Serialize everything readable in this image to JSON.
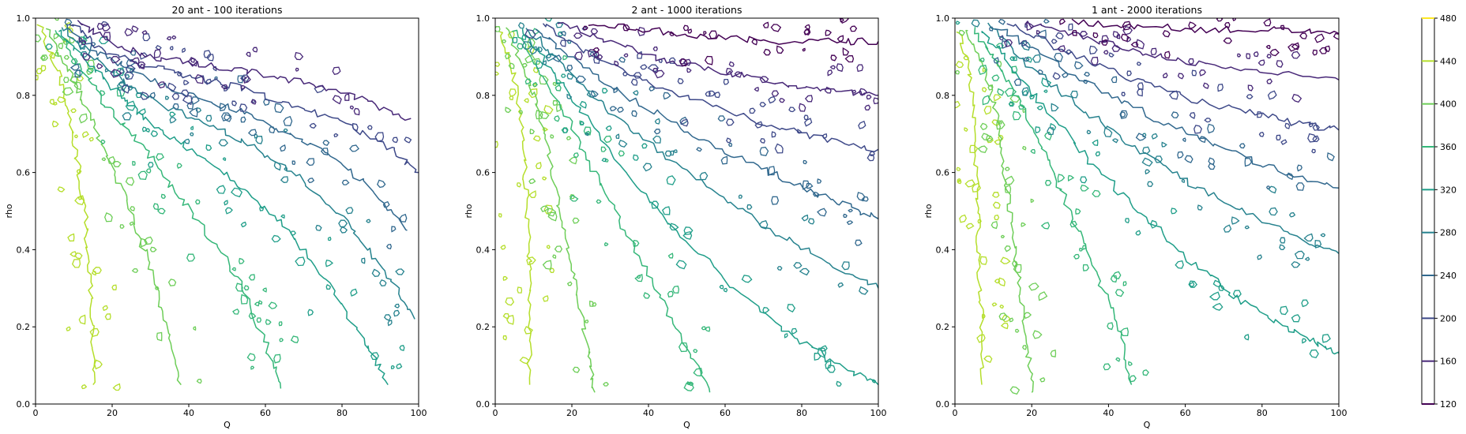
{
  "chart_data": {
    "type": "contour",
    "levels": [
      120,
      160,
      200,
      240,
      280,
      320,
      360,
      400,
      440,
      480
    ],
    "level_colors": [
      "#440154",
      "#482878",
      "#3e4989",
      "#31688e",
      "#26828e",
      "#1f9e89",
      "#35b779",
      "#6ece58",
      "#b5de2b",
      "#fde725"
    ],
    "panels": [
      {
        "title": "20 ant - 100 iterations",
        "xlabel": "Q",
        "ylabel": "rho",
        "xlim": [
          0,
          100
        ],
        "ylim": [
          0,
          1
        ],
        "xticks": [
          "0",
          "20",
          "40",
          "60",
          "80",
          "100"
        ],
        "yticks": [
          "0.0",
          "0.2",
          "0.4",
          "0.6",
          "0.8",
          "1.0"
        ],
        "level_boundaries": [
          {
            "level": 440,
            "pts": [
              [
                1,
                0.98
              ],
              [
                6,
                0.86
              ],
              [
                9,
                0.74
              ],
              [
                11,
                0.62
              ],
              [
                13,
                0.48
              ],
              [
                14,
                0.34
              ],
              [
                15,
                0.2
              ],
              [
                15,
                0.05
              ]
            ]
          },
          {
            "level": 400,
            "pts": [
              [
                3,
                0.97
              ],
              [
                9,
                0.86
              ],
              [
                14,
                0.75
              ],
              [
                19,
                0.64
              ],
              [
                24,
                0.52
              ],
              [
                29,
                0.38
              ],
              [
                34,
                0.22
              ],
              [
                38,
                0.05
              ]
            ]
          },
          {
            "level": 360,
            "pts": [
              [
                5,
                0.97
              ],
              [
                12,
                0.87
              ],
              [
                18,
                0.78
              ],
              [
                25,
                0.7
              ],
              [
                33,
                0.6
              ],
              [
                42,
                0.48
              ],
              [
                52,
                0.34
              ],
              [
                60,
                0.16
              ],
              [
                64,
                0.04
              ]
            ]
          },
          {
            "level": 320,
            "pts": [
              [
                6,
                0.97
              ],
              [
                14,
                0.88
              ],
              [
                22,
                0.8
              ],
              [
                30,
                0.73
              ],
              [
                40,
                0.66
              ],
              [
                52,
                0.58
              ],
              [
                64,
                0.47
              ],
              [
                76,
                0.32
              ],
              [
                86,
                0.16
              ],
              [
                92,
                0.05
              ]
            ]
          },
          {
            "level": 280,
            "pts": [
              [
                7,
                0.98
              ],
              [
                15,
                0.9
              ],
              [
                24,
                0.83
              ],
              [
                34,
                0.77
              ],
              [
                46,
                0.72
              ],
              [
                58,
                0.66
              ],
              [
                70,
                0.58
              ],
              [
                82,
                0.46
              ],
              [
                92,
                0.33
              ],
              [
                99,
                0.22
              ]
            ]
          },
          {
            "level": 240,
            "pts": [
              [
                8,
                0.98
              ],
              [
                16,
                0.91
              ],
              [
                26,
                0.86
              ],
              [
                37,
                0.81
              ],
              [
                50,
                0.77
              ],
              [
                62,
                0.72
              ],
              [
                74,
                0.66
              ],
              [
                86,
                0.57
              ],
              [
                97,
                0.45
              ]
            ]
          },
          {
            "level": 200,
            "pts": [
              [
                9,
                0.99
              ],
              [
                17,
                0.92
              ],
              [
                28,
                0.88
              ],
              [
                40,
                0.85
              ],
              [
                53,
                0.82
              ],
              [
                66,
                0.78
              ],
              [
                80,
                0.73
              ],
              [
                93,
                0.66
              ],
              [
                100,
                0.6
              ]
            ]
          },
          {
            "level": 160,
            "pts": [
              [
                11,
                0.99
              ],
              [
                19,
                0.94
              ],
              [
                30,
                0.9
              ],
              [
                43,
                0.88
              ],
              [
                57,
                0.86
              ],
              [
                71,
                0.83
              ],
              [
                85,
                0.79
              ],
              [
                98,
                0.74
              ]
            ]
          }
        ]
      },
      {
        "title": "2 ant - 1000 iterations",
        "xlabel": "Q",
        "ylabel": "rho",
        "xlim": [
          0,
          100
        ],
        "ylim": [
          0,
          1
        ],
        "xticks": [
          "0",
          "20",
          "40",
          "60",
          "80",
          "100"
        ],
        "yticks": [
          "0.0",
          "0.2",
          "0.4",
          "0.6",
          "0.8",
          "1.0"
        ],
        "level_boundaries": [
          {
            "level": 440,
            "pts": [
              [
                1,
                0.97
              ],
              [
                5,
                0.84
              ],
              [
                7,
                0.7
              ],
              [
                8,
                0.55
              ],
              [
                9,
                0.4
              ],
              [
                9,
                0.25
              ],
              [
                9,
                0.05
              ]
            ]
          },
          {
            "level": 400,
            "pts": [
              [
                3,
                0.97
              ],
              [
                8,
                0.86
              ],
              [
                12,
                0.74
              ],
              [
                15,
                0.6
              ],
              [
                18,
                0.45
              ],
              [
                21,
                0.3
              ],
              [
                24,
                0.15
              ],
              [
                26,
                0.03
              ]
            ]
          },
          {
            "level": 360,
            "pts": [
              [
                5,
                0.97
              ],
              [
                12,
                0.86
              ],
              [
                19,
                0.74
              ],
              [
                26,
                0.6
              ],
              [
                34,
                0.45
              ],
              [
                42,
                0.3
              ],
              [
                50,
                0.15
              ],
              [
                56,
                0.03
              ]
            ]
          },
          {
            "level": 320,
            "pts": [
              [
                7,
                0.97
              ],
              [
                15,
                0.86
              ],
              [
                24,
                0.74
              ],
              [
                34,
                0.6
              ],
              [
                46,
                0.46
              ],
              [
                60,
                0.32
              ],
              [
                74,
                0.2
              ],
              [
                88,
                0.11
              ],
              [
                100,
                0.05
              ]
            ]
          },
          {
            "level": 280,
            "pts": [
              [
                8,
                0.98
              ],
              [
                18,
                0.87
              ],
              [
                29,
                0.77
              ],
              [
                42,
                0.66
              ],
              [
                57,
                0.55
              ],
              [
                72,
                0.45
              ],
              [
                86,
                0.37
              ],
              [
                100,
                0.3
              ]
            ]
          },
          {
            "level": 240,
            "pts": [
              [
                10,
                0.98
              ],
              [
                21,
                0.89
              ],
              [
                34,
                0.8
              ],
              [
                48,
                0.72
              ],
              [
                63,
                0.64
              ],
              [
                78,
                0.57
              ],
              [
                90,
                0.52
              ],
              [
                100,
                0.48
              ]
            ]
          },
          {
            "level": 200,
            "pts": [
              [
                12,
                0.99
              ],
              [
                24,
                0.91
              ],
              [
                38,
                0.84
              ],
              [
                54,
                0.78
              ],
              [
                70,
                0.73
              ],
              [
                85,
                0.69
              ],
              [
                100,
                0.66
              ]
            ]
          },
          {
            "level": 160,
            "pts": [
              [
                16,
                0.99
              ],
              [
                30,
                0.94
              ],
              [
                45,
                0.89
              ],
              [
                60,
                0.86
              ],
              [
                75,
                0.83
              ],
              [
                88,
                0.81
              ],
              [
                100,
                0.8
              ]
            ]
          },
          {
            "level": 120,
            "pts": [
              [
                24,
                0.99
              ],
              [
                40,
                0.97
              ],
              [
                56,
                0.95
              ],
              [
                72,
                0.94
              ],
              [
                88,
                0.94
              ],
              [
                100,
                0.94
              ]
            ]
          }
        ]
      },
      {
        "title": "1 ant - 2000 iterations",
        "xlabel": "Q",
        "ylabel": "rho",
        "xlim": [
          0,
          100
        ],
        "ylim": [
          0,
          1
        ],
        "xticks": [
          "0",
          "20",
          "40",
          "60",
          "80",
          "100"
        ],
        "yticks": [
          "0.0",
          "0.2",
          "0.4",
          "0.6",
          "0.8",
          "1.0"
        ],
        "level_boundaries": [
          {
            "level": 440,
            "pts": [
              [
                1,
                0.97
              ],
              [
                4,
                0.84
              ],
              [
                5,
                0.7
              ],
              [
                6,
                0.55
              ],
              [
                6,
                0.4
              ],
              [
                7,
                0.25
              ],
              [
                7,
                0.05
              ]
            ]
          },
          {
            "level": 400,
            "pts": [
              [
                3,
                0.97
              ],
              [
                8,
                0.86
              ],
              [
                11,
                0.74
              ],
              [
                13,
                0.6
              ],
              [
                15,
                0.45
              ],
              [
                17,
                0.3
              ],
              [
                19,
                0.15
              ],
              [
                20,
                0.03
              ]
            ]
          },
          {
            "level": 360,
            "pts": [
              [
                5,
                0.97
              ],
              [
                12,
                0.87
              ],
              [
                18,
                0.76
              ],
              [
                24,
                0.64
              ],
              [
                30,
                0.5
              ],
              [
                36,
                0.36
              ],
              [
                42,
                0.22
              ],
              [
                46,
                0.05
              ]
            ]
          },
          {
            "level": 320,
            "pts": [
              [
                7,
                0.97
              ],
              [
                15,
                0.87
              ],
              [
                24,
                0.76
              ],
              [
                34,
                0.64
              ],
              [
                46,
                0.52
              ],
              [
                58,
                0.4
              ],
              [
                70,
                0.3
              ],
              [
                82,
                0.22
              ],
              [
                94,
                0.16
              ],
              [
                100,
                0.13
              ]
            ]
          },
          {
            "level": 280,
            "pts": [
              [
                9,
                0.98
              ],
              [
                19,
                0.88
              ],
              [
                31,
                0.78
              ],
              [
                45,
                0.68
              ],
              [
                60,
                0.58
              ],
              [
                75,
                0.5
              ],
              [
                89,
                0.43
              ],
              [
                100,
                0.39
              ]
            ]
          },
          {
            "level": 240,
            "pts": [
              [
                11,
                0.98
              ],
              [
                23,
                0.9
              ],
              [
                37,
                0.82
              ],
              [
                52,
                0.74
              ],
              [
                68,
                0.67
              ],
              [
                83,
                0.61
              ],
              [
                100,
                0.56
              ]
            ]
          },
          {
            "level": 200,
            "pts": [
              [
                14,
                0.99
              ],
              [
                27,
                0.92
              ],
              [
                42,
                0.86
              ],
              [
                58,
                0.8
              ],
              [
                74,
                0.76
              ],
              [
                88,
                0.73
              ],
              [
                100,
                0.71
              ]
            ]
          },
          {
            "level": 160,
            "pts": [
              [
                18,
                0.99
              ],
              [
                33,
                0.95
              ],
              [
                49,
                0.91
              ],
              [
                65,
                0.88
              ],
              [
                81,
                0.86
              ],
              [
                100,
                0.84
              ]
            ]
          },
          {
            "level": 120,
            "pts": [
              [
                30,
                0.99
              ],
              [
                48,
                0.98
              ],
              [
                66,
                0.97
              ],
              [
                84,
                0.97
              ],
              [
                100,
                0.96
              ]
            ]
          }
        ]
      }
    ],
    "colorbar": {
      "ticks": [
        "120",
        "160",
        "200",
        "240",
        "280",
        "320",
        "360",
        "400",
        "440",
        "480"
      ],
      "range": [
        120,
        480
      ]
    }
  }
}
